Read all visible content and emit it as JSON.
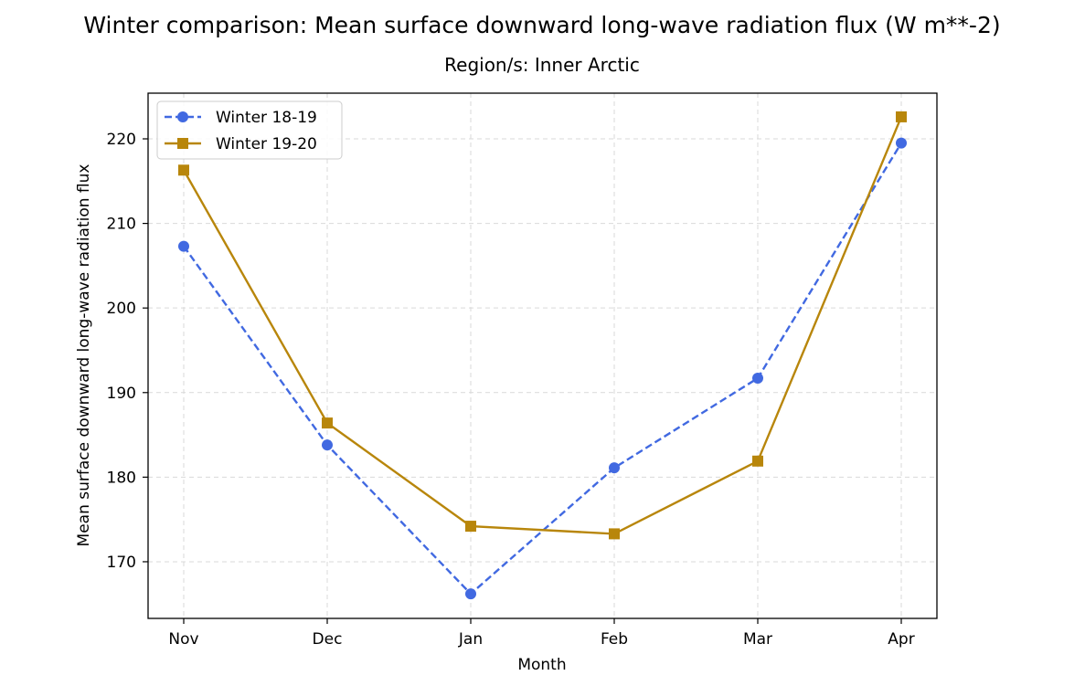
{
  "chart_data": {
    "type": "line",
    "title": "Winter comparison: Mean surface downward long-wave radiation flux (W m**-2)",
    "subtitle": "Region/s: Inner Arctic",
    "xlabel": "Month",
    "ylabel": "Mean surface downward long-wave radiation flux",
    "categories": [
      "Nov",
      "Dec",
      "Jan",
      "Feb",
      "Mar",
      "Apr"
    ],
    "ylim": [
      163.3,
      225.4
    ],
    "yticks": [
      170,
      180,
      190,
      200,
      210,
      220
    ],
    "grid": true,
    "legend_position": "upper-left",
    "series": [
      {
        "name": "Winter 18-19",
        "values": [
          207.3,
          183.8,
          166.2,
          181.1,
          191.7,
          219.5
        ],
        "color": "#4169e1",
        "line_style": "dashed",
        "marker": "circle"
      },
      {
        "name": "Winter 19-20",
        "values": [
          216.3,
          186.4,
          174.2,
          173.3,
          181.9,
          222.6
        ],
        "color": "#b8860b",
        "line_style": "solid",
        "marker": "square"
      }
    ]
  }
}
